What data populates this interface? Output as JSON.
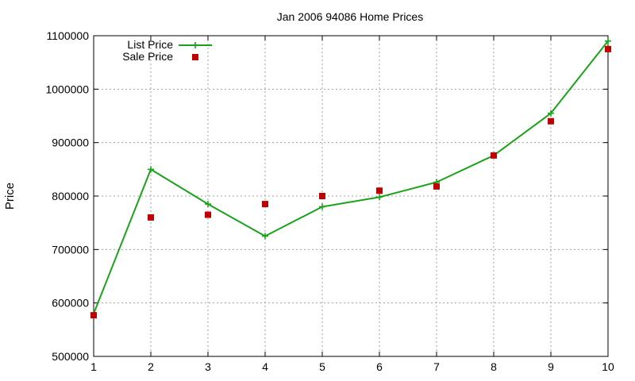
{
  "chart_data": {
    "type": "line",
    "title": "Jan 2006 94086 Home Prices",
    "xlabel": "",
    "ylabel": "Price",
    "x": [
      1,
      2,
      3,
      4,
      5,
      6,
      7,
      8,
      9,
      10
    ],
    "xlim": [
      1,
      10
    ],
    "ylim": [
      500000,
      1100000
    ],
    "xticks": [
      "1",
      "2",
      "3",
      "4",
      "5",
      "6",
      "7",
      "8",
      "9",
      "10"
    ],
    "yticks": [
      "500000",
      "600000",
      "700000",
      "800000",
      "900000",
      "1000000",
      "1100000"
    ],
    "ytick_values": [
      500000,
      600000,
      700000,
      800000,
      900000,
      1000000,
      1100000
    ],
    "grid": true,
    "legend_position": "top-left",
    "series": [
      {
        "name": "List Price",
        "style": "line-with-plus-markers",
        "color": "#1aa31a",
        "values": [
          580000,
          850000,
          785000,
          725000,
          780000,
          798000,
          826000,
          876000,
          955000,
          1090000
        ]
      },
      {
        "name": "Sale Price",
        "style": "square-markers",
        "color": "#c00000",
        "values": [
          577000,
          760000,
          765000,
          785000,
          800000,
          810000,
          818000,
          876000,
          940000,
          1075000
        ]
      }
    ]
  }
}
